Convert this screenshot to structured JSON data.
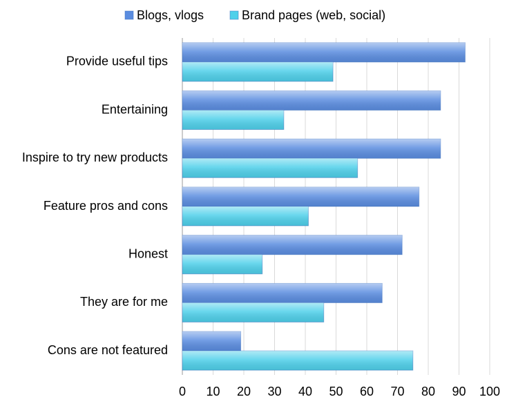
{
  "chart_data": {
    "type": "hbar",
    "categories": [
      "Provide useful tips",
      "Entertaining",
      "Inspire to try new products",
      "Feature pros and cons",
      "Honest",
      "They are for me",
      "Cons are not featured"
    ],
    "series": [
      {
        "name": "Blogs, vlogs",
        "color": "#5b8de0",
        "values": [
          92,
          84,
          84,
          77,
          71.5,
          65,
          19
        ]
      },
      {
        "name": "Brand pages (web, social)",
        "color": "#4fd0ea",
        "values": [
          49,
          33,
          57,
          41,
          26,
          46,
          75
        ]
      }
    ],
    "xlim": [
      0,
      100
    ],
    "xticks": [
      0,
      10,
      20,
      30,
      40,
      50,
      60,
      70,
      80,
      90,
      100
    ],
    "grid": true
  }
}
